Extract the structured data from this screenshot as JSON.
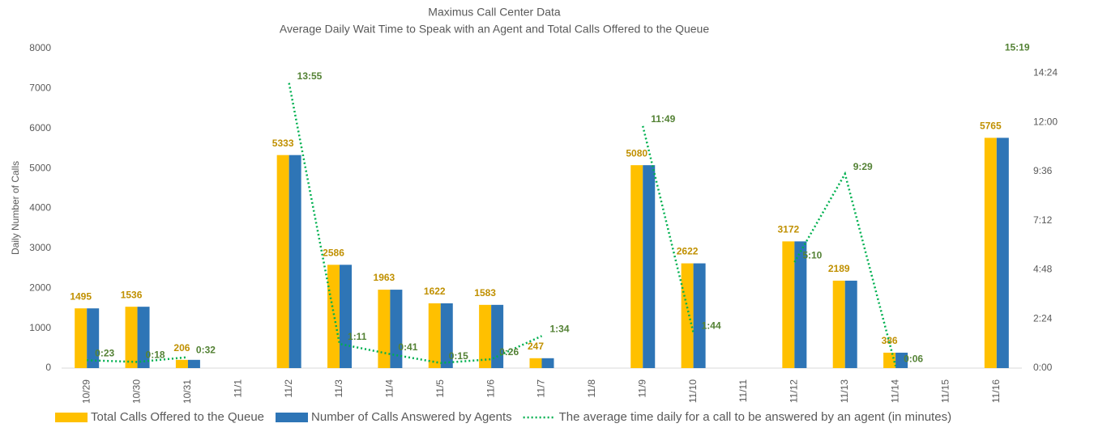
{
  "chart_data": {
    "type": "bar-line",
    "title": "Maximus Call Center Data",
    "subtitle": "Average Daily Wait Time to Speak with an Agent and Total Calls Offered to the Queue",
    "y_label": "Daily Number of Calls",
    "categories": [
      "10/29",
      "10/30",
      "10/31",
      "11/1",
      "11/2",
      "11/3",
      "11/4",
      "11/5",
      "11/6",
      "11/7",
      "11/8",
      "11/9",
      "11/10",
      "11/11",
      "11/12",
      "11/13",
      "11/14",
      "11/15",
      "11/16"
    ],
    "series": [
      {
        "name": "Total Calls Offered to the Queue",
        "color": "#FFC000",
        "kind": "bar",
        "values": [
          1495,
          1536,
          206,
          null,
          5333,
          2586,
          1963,
          1622,
          1583,
          247,
          null,
          5080,
          2622,
          null,
          3172,
          2189,
          386,
          null,
          5765
        ]
      },
      {
        "name": "Number of Calls Answered by Agents",
        "color": "#2E75B6",
        "kind": "bar",
        "values": [
          1495,
          1536,
          206,
          null,
          5333,
          2586,
          1963,
          1622,
          1583,
          247,
          null,
          5080,
          2622,
          null,
          3172,
          2189,
          386,
          null,
          5765
        ]
      },
      {
        "name": "The average time daily for a call to be answered by an agent (in minutes)",
        "color": "#00B050",
        "kind": "line",
        "axis": "y2",
        "values": [
          0.383,
          0.3,
          0.533,
          null,
          13.917,
          1.183,
          0.683,
          0.25,
          0.433,
          1.567,
          null,
          11.817,
          1.733,
          null,
          5.167,
          9.483,
          0.1,
          null,
          15.317
        ],
        "value_labels": [
          "0:23",
          "0:18",
          "0:32",
          null,
          "13:55",
          "1:11",
          "0:41",
          "0:15",
          "0:26",
          "1:34",
          null,
          "11:49",
          "1:44",
          null,
          "5:10",
          "9:29",
          "0:06",
          null,
          "15:19"
        ]
      }
    ],
    "ylim": [
      0,
      8000
    ],
    "yticks": [
      0,
      1000,
      2000,
      3000,
      4000,
      5000,
      6000,
      7000,
      8000
    ],
    "y2lim": [
      0,
      15.6
    ],
    "y2ticks": [
      {
        "value": 0,
        "label": "0:00"
      },
      {
        "value": 2.4,
        "label": "2:24"
      },
      {
        "value": 4.8,
        "label": "4:48"
      },
      {
        "value": 7.2,
        "label": "7:12"
      },
      {
        "value": 9.6,
        "label": "9:36"
      },
      {
        "value": 12,
        "label": "12:00"
      },
      {
        "value": 14.4,
        "label": "14:24"
      }
    ]
  }
}
